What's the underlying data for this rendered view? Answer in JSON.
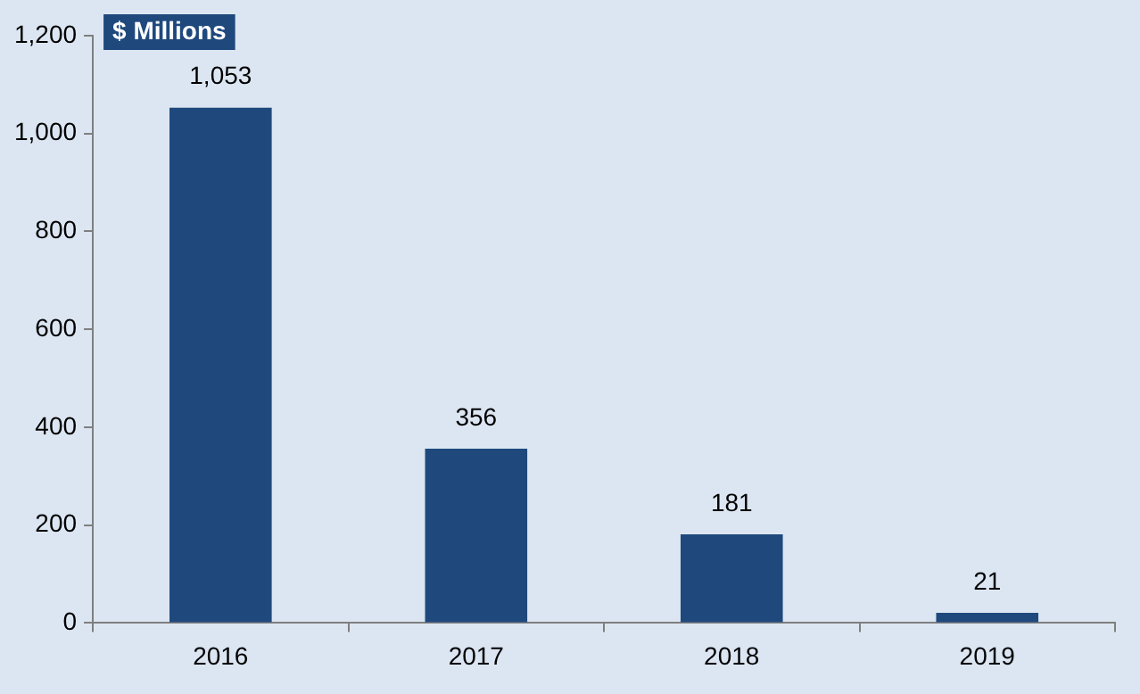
{
  "chart_data": {
    "type": "bar",
    "ylabel": "$ Millions",
    "categories": [
      "2016",
      "2017",
      "2018",
      "2019"
    ],
    "values": [
      1053,
      356,
      181,
      21
    ],
    "value_labels": [
      "1,053",
      "356",
      "181",
      "21"
    ],
    "color": "#1f497d",
    "ylim": [
      0,
      1200
    ],
    "yticks": [
      0,
      {
        "value": 200,
        "label": "200"
      },
      {
        "value": 400,
        "label": "400"
      },
      {
        "value": 600,
        "label": "600"
      },
      {
        "value": 800,
        "label": "800"
      },
      {
        "value": 1000,
        "label": "1,000"
      },
      {
        "value": 1200,
        "label": "1,200"
      }
    ],
    "grid": false,
    "legend": false
  }
}
